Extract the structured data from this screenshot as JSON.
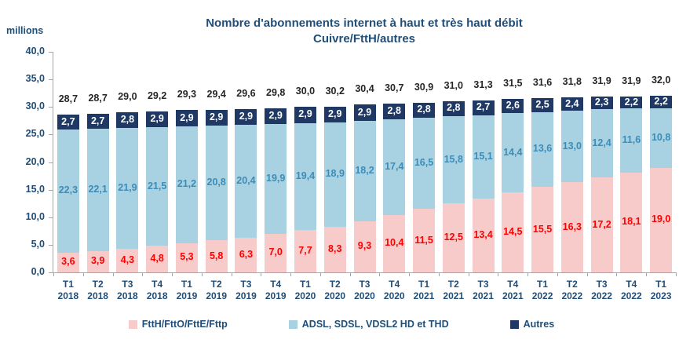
{
  "title": {
    "line1": "Nombre d'abonnements internet à haut et très haut débit",
    "line2": "Cuivre/FttH/autres"
  },
  "y_axis": {
    "unit": "millions",
    "min": 0,
    "max": 40,
    "step": 5,
    "tick_labels": [
      "0,0",
      "5,0",
      "10,0",
      "15,0",
      "20,0",
      "25,0",
      "30,0",
      "35,0",
      "40,0"
    ]
  },
  "colors": {
    "title_text": "#1F4E79",
    "axis_text": "#1F4E79",
    "axis_line": "#A6A6A6",
    "total_text": "#262626",
    "ftth_bar": "#F8CBCB",
    "ftth_text": "#FF0000",
    "adsl_bar": "#A8D2E2",
    "adsl_text": "#3C8CB8",
    "autres_bar": "#1F3864",
    "autres_text": "#FFFFFF"
  },
  "chart_data": {
    "type": "bar",
    "stacked": true,
    "grid": false,
    "legend_position": "bottom",
    "title": "Nombre d'abonnements internet à haut et très haut débit Cuivre/FttH/autres",
    "xlabel": "",
    "ylabel": "millions",
    "ylim": [
      0,
      40
    ],
    "categories": [
      {
        "q": "T1",
        "year": "2018"
      },
      {
        "q": "T2",
        "year": "2018"
      },
      {
        "q": "T3",
        "year": "2018"
      },
      {
        "q": "T4",
        "year": "2018"
      },
      {
        "q": "T1",
        "year": "2019"
      },
      {
        "q": "T2",
        "year": "2019"
      },
      {
        "q": "T3",
        "year": "2019"
      },
      {
        "q": "T4",
        "year": "2019"
      },
      {
        "q": "T1",
        "year": "2020"
      },
      {
        "q": "T2",
        "year": "2020"
      },
      {
        "q": "T3",
        "year": "2020"
      },
      {
        "q": "T4",
        "year": "2020"
      },
      {
        "q": "T1",
        "year": "2021"
      },
      {
        "q": "T2",
        "year": "2021"
      },
      {
        "q": "T3",
        "year": "2021"
      },
      {
        "q": "T4",
        "year": "2021"
      },
      {
        "q": "T1",
        "year": "2022"
      },
      {
        "q": "T2",
        "year": "2022"
      },
      {
        "q": "T3",
        "year": "2022"
      },
      {
        "q": "T4",
        "year": "2022"
      },
      {
        "q": "T1",
        "year": "2023"
      }
    ],
    "series": [
      {
        "key": "ftth",
        "name": "FttH/FttO/FttE/Fttp",
        "color": "#F8CBCB",
        "label_color": "#FF0000",
        "values": [
          3.6,
          3.9,
          4.3,
          4.8,
          5.3,
          5.8,
          6.3,
          7.0,
          7.7,
          8.3,
          9.3,
          10.4,
          11.5,
          12.5,
          13.4,
          14.5,
          15.5,
          16.3,
          17.2,
          18.1,
          19.0
        ]
      },
      {
        "key": "adsl",
        "name": "ADSL, SDSL, VDSL2 HD et THD",
        "color": "#A8D2E2",
        "label_color": "#3C8CB8",
        "values": [
          22.3,
          22.1,
          21.9,
          21.5,
          21.2,
          20.8,
          20.4,
          19.9,
          19.4,
          18.9,
          18.2,
          17.4,
          16.5,
          15.8,
          15.1,
          14.4,
          13.6,
          13.0,
          12.4,
          11.6,
          10.8
        ]
      },
      {
        "key": "autres",
        "name": "Autres",
        "color": "#1F3864",
        "label_color": "#FFFFFF",
        "values": [
          2.7,
          2.7,
          2.8,
          2.9,
          2.9,
          2.9,
          2.9,
          2.9,
          2.9,
          2.9,
          2.9,
          2.8,
          2.8,
          2.8,
          2.7,
          2.6,
          2.5,
          2.4,
          2.3,
          2.2,
          2.2
        ]
      }
    ],
    "totals": [
      28.7,
      28.7,
      29.0,
      29.2,
      29.3,
      29.4,
      29.6,
      29.8,
      30.0,
      30.2,
      30.4,
      30.7,
      30.9,
      31.0,
      31.3,
      31.5,
      31.6,
      31.8,
      31.9,
      31.9,
      32.0
    ]
  }
}
